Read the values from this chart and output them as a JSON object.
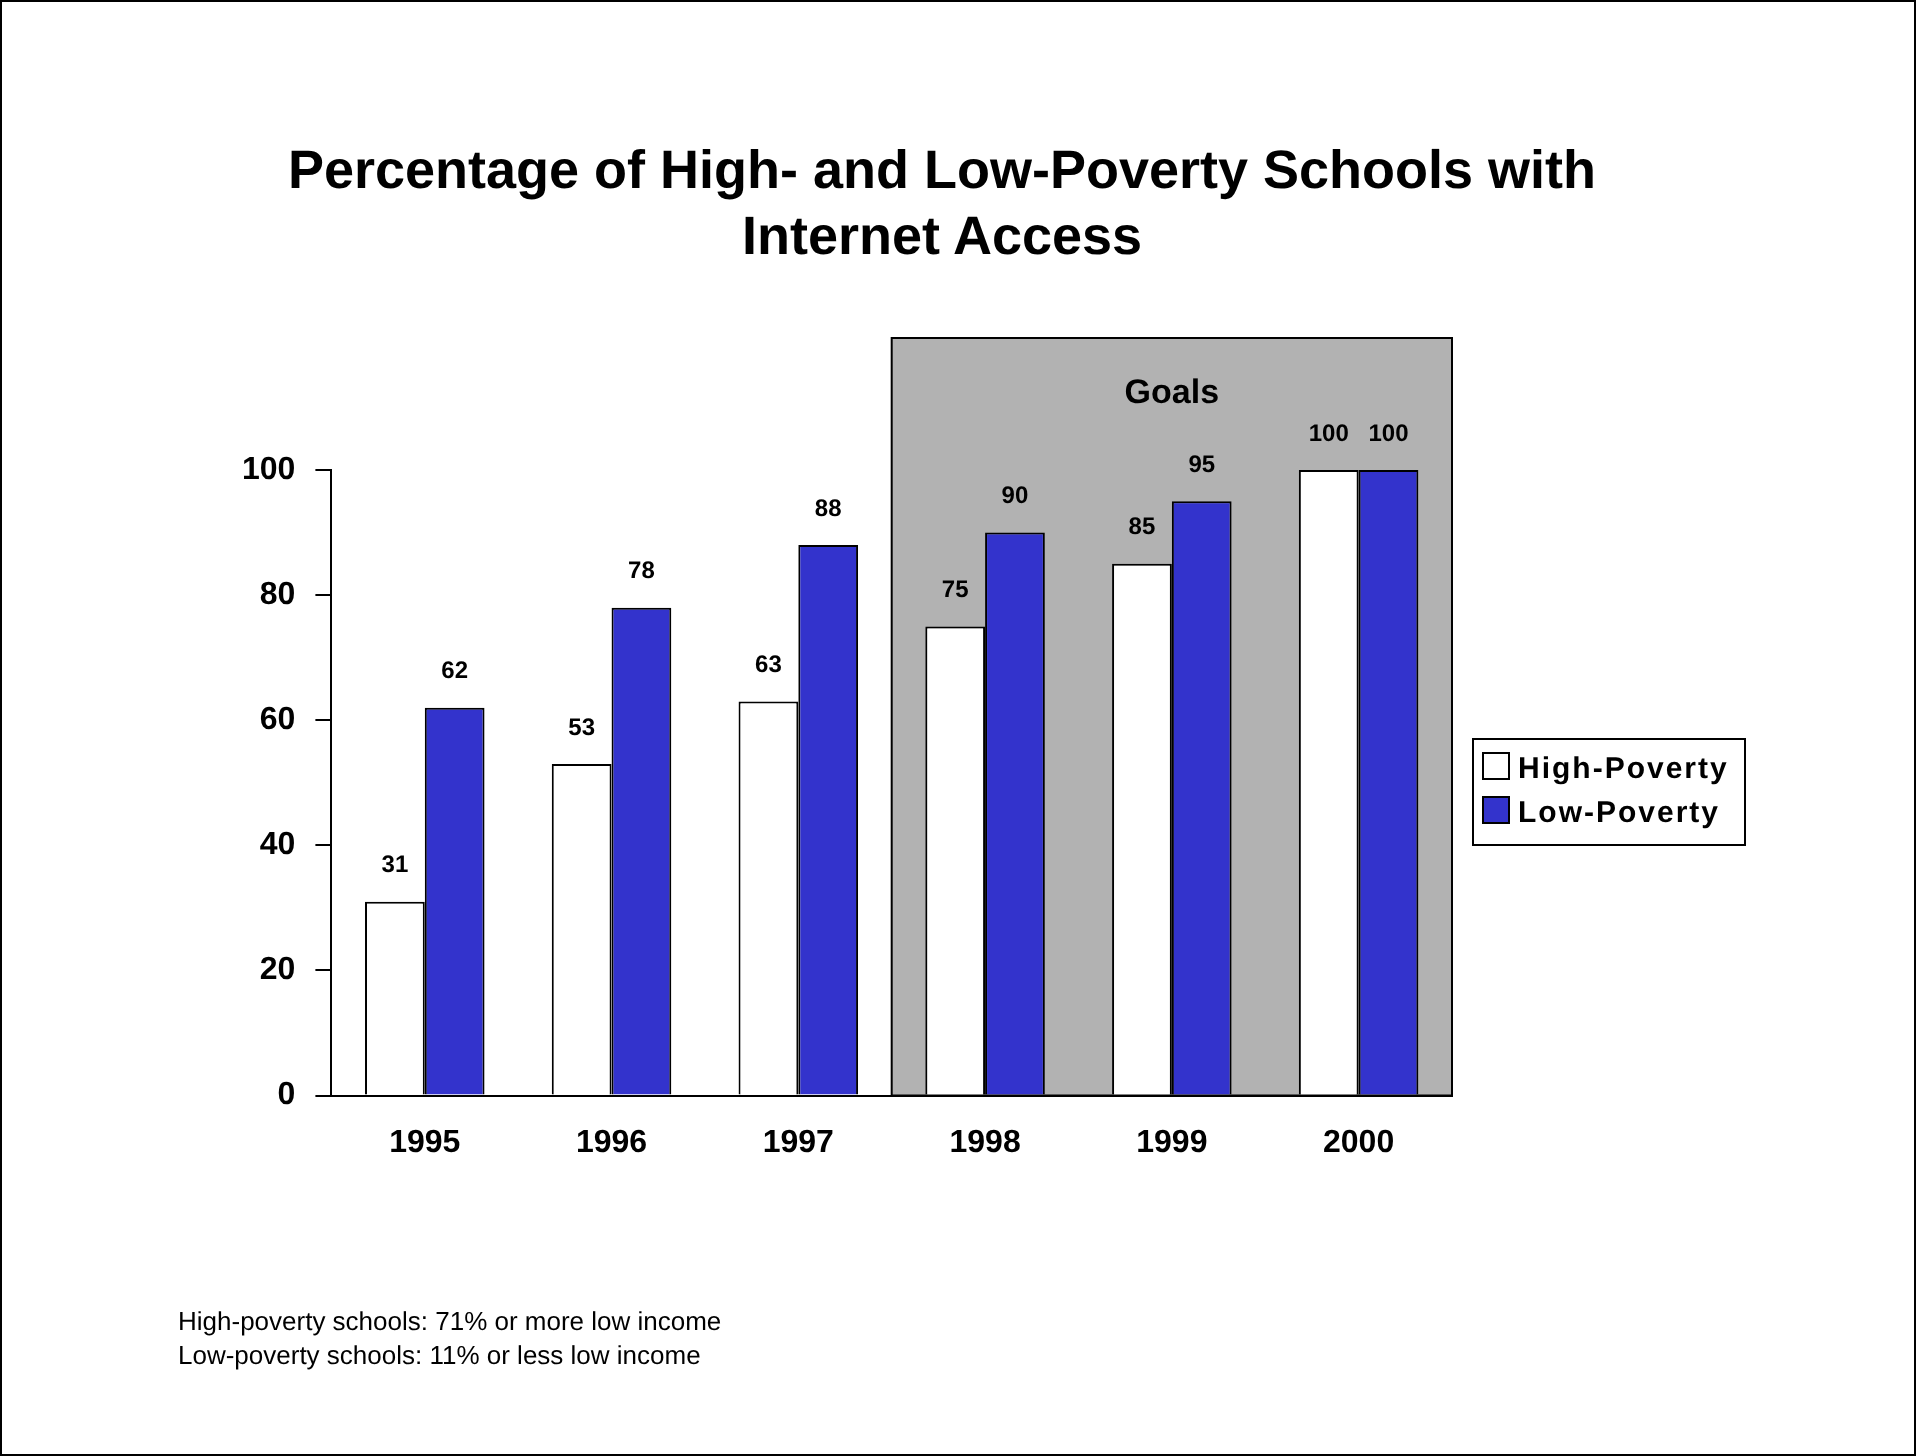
{
  "chart_data": {
    "type": "bar",
    "title": "Percentage of High- and Low-Poverty Schools with Internet Access",
    "categories": [
      "1995",
      "1996",
      "1997",
      "1998",
      "1999",
      "2000"
    ],
    "series": [
      {
        "name": "High-Poverty",
        "color": "#ffffff",
        "values": [
          31,
          53,
          63,
          75,
          85,
          100
        ]
      },
      {
        "name": "Low-Poverty",
        "color": "#3333cc",
        "values": [
          62,
          78,
          88,
          90,
          95,
          100
        ]
      }
    ],
    "ylim": [
      0,
      100
    ],
    "yticks": [
      0,
      20,
      40,
      60,
      80,
      100
    ],
    "grid": false,
    "legend": "right",
    "data_labels": true,
    "bands": [
      {
        "axis": "x",
        "from": "1998",
        "to": "2000",
        "label": "Goals",
        "color": "#b2b2b2"
      }
    ],
    "annotations": [
      "High-poverty schools:  71% or more low income",
      "Low-poverty schools: 11% or less low income"
    ]
  }
}
